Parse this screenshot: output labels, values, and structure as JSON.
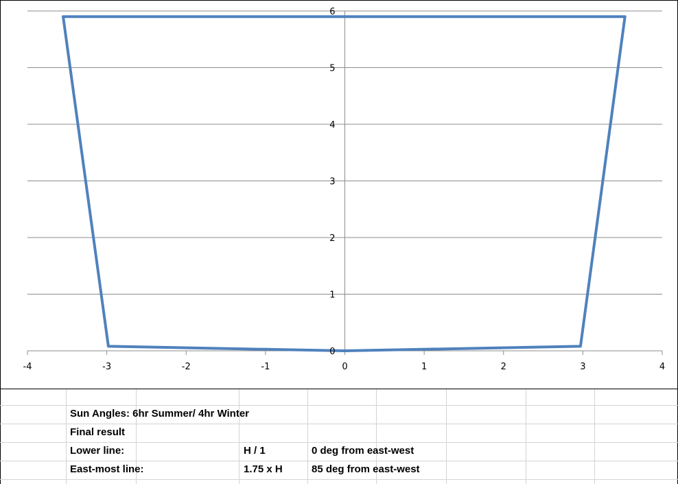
{
  "chart_data": {
    "type": "scatter",
    "title": "",
    "xlabel": "",
    "ylabel": "",
    "xlim": [
      -4,
      4
    ],
    "ylim": [
      0,
      6
    ],
    "x_ticks": [
      "-4",
      "-3",
      "-2",
      "-1",
      "0",
      "1",
      "2",
      "3",
      "4"
    ],
    "y_ticks": [
      "0",
      "1",
      "2",
      "3",
      "4",
      "5",
      "6"
    ],
    "grid": "horizontal",
    "legend": "none",
    "series": [
      {
        "color": "#4f81bd",
        "x": [
          -3.55,
          -2.98,
          0,
          2.97,
          3.53,
          -3.55
        ],
        "y": [
          5.9,
          0.08,
          0,
          0.08,
          5.9,
          5.9
        ]
      }
    ]
  },
  "sheet": {
    "row1_col_b": "Sun Angles: 6hr Summer/ 4hr Winter",
    "row2_col_b": "Final result",
    "row3_col_b": "Lower line:",
    "row3_col_c": "H / 1",
    "row3_col_d": "0 deg from east-west",
    "row4_col_b": "East-most line:",
    "row4_col_c": "1.75 x H",
    "row4_col_d": "85 deg from east-west"
  }
}
